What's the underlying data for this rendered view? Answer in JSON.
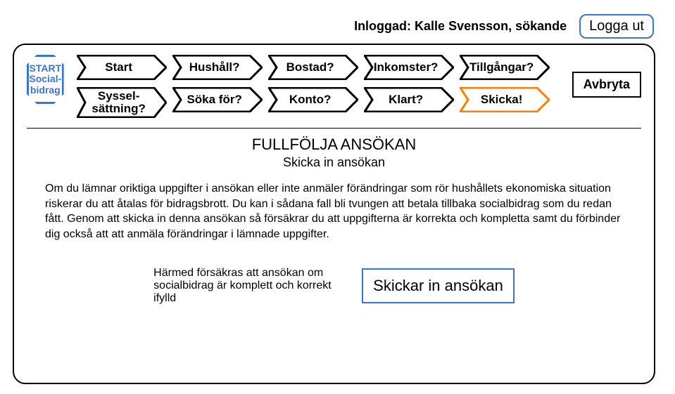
{
  "colors": {
    "accent": "#3b74d8",
    "active": "#ff7f00",
    "borderDefault": "#000000",
    "background": "#ffffff"
  },
  "header": {
    "logged_in": "Inloggad: Kalle Svensson, sökande",
    "logout": "Logga ut"
  },
  "start_badge": "START\nSocial-\nbidrag",
  "nav": {
    "row1": [
      {
        "label": "Start",
        "active": false
      },
      {
        "label": "Hushåll?",
        "active": false
      },
      {
        "label": "Bostad?",
        "active": false
      },
      {
        "label": "Inkomster?",
        "active": false
      },
      {
        "label": "Tillgångar?",
        "active": false
      }
    ],
    "row2": [
      {
        "label": "Syssel-\nsättning?",
        "active": false,
        "tall": true
      },
      {
        "label": "Söka för?",
        "active": false
      },
      {
        "label": "Konto?",
        "active": false
      },
      {
        "label": "Klart?",
        "active": false
      },
      {
        "label": "Skicka!",
        "active": true
      }
    ]
  },
  "cancel_label": "Avbryta",
  "content": {
    "title": "FULLFÖLJA ANSÖKAN",
    "subtitle": "Skicka in ansökan",
    "body": "Om du lämnar oriktiga uppgifter i ansökan eller inte anmäler förändringar som rör hushållets ekonomiska situation riskerar du att åtalas för bidragsbrott. Du kan i sådana fall bli tvungen att betala tillbaka socialbidrag som du redan fått. Genom att skicka in denna ansökan så försäkrar du att uppgifterna är korrekta och kompletta samt du förbinder dig också att att anmäla förändringar i lämnade uppgifter.",
    "confirm_text": "Härmed försäkras att ansökan om socialbidrag är komplett och korrekt ifylld",
    "submit_label": "Skickar in ansökan"
  }
}
